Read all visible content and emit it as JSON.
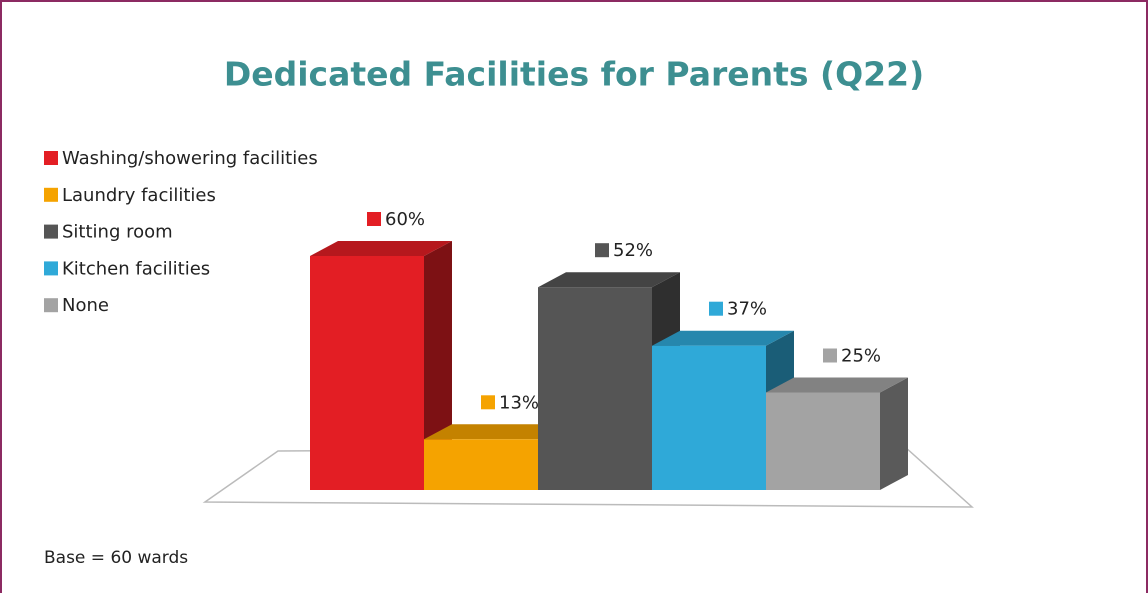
{
  "chart_data": {
    "type": "bar3d",
    "title": "Dedicated Facilities for Parents (Q22)",
    "categories": [
      "Washing/showering facilities",
      "Laundry facilities",
      "Sitting room",
      "Kitchen facilities",
      "None"
    ],
    "values": [
      60,
      13,
      52,
      37,
      25
    ],
    "value_labels": [
      "60%",
      "13%",
      "52%",
      "37%",
      "25%"
    ],
    "colors": [
      "#e31e24",
      "#f5a300",
      "#555555",
      "#2fa9d8",
      "#a3a3a3"
    ],
    "footnote": "Base = 60 wards"
  }
}
